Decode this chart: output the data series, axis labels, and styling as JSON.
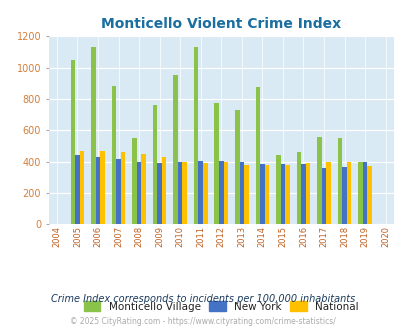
{
  "title": "Monticello Violent Crime Index",
  "years": [
    2004,
    2005,
    2006,
    2007,
    2008,
    2009,
    2010,
    2011,
    2012,
    2013,
    2014,
    2015,
    2016,
    2017,
    2018,
    2019,
    2020
  ],
  "monticello": [
    0,
    1050,
    1130,
    880,
    550,
    760,
    950,
    1130,
    775,
    730,
    875,
    440,
    460,
    560,
    550,
    400,
    0
  ],
  "new_york": [
    0,
    445,
    430,
    415,
    400,
    390,
    400,
    405,
    405,
    395,
    385,
    385,
    385,
    360,
    365,
    395,
    0
  ],
  "national": [
    0,
    470,
    470,
    465,
    450,
    430,
    400,
    390,
    395,
    380,
    378,
    380,
    390,
    395,
    395,
    370,
    0
  ],
  "bar_width": 0.22,
  "colors": {
    "monticello": "#8bc34a",
    "new_york": "#4472c4",
    "national": "#ffc000"
  },
  "bg_color": "#daeaf5",
  "ylim": [
    0,
    1200
  ],
  "yticks": [
    0,
    200,
    400,
    600,
    800,
    1000,
    1200
  ],
  "legend_labels": [
    "Monticello Village",
    "New York",
    "National"
  ],
  "footnote1": "Crime Index corresponds to incidents per 100,000 inhabitants",
  "footnote2": "© 2025 CityRating.com - https://www.cityrating.com/crime-statistics/",
  "title_color": "#1a6ea0",
  "footnote1_color": "#1a3a5c",
  "footnote2_color": "#aaaaaa",
  "ytick_color": "#d47f3a",
  "xtick_color": "#c06020"
}
